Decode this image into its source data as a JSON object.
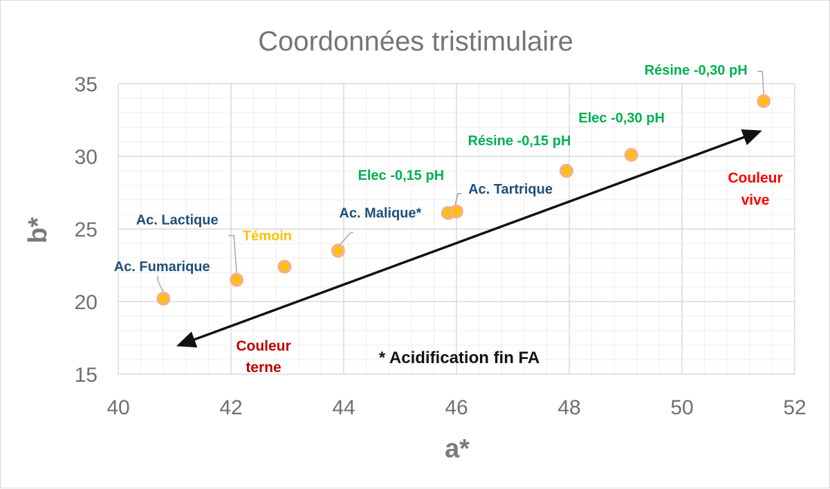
{
  "chart_data": {
    "type": "scatter",
    "title": "Coordonnées tristimulaire",
    "xlabel": "a*",
    "ylabel": "b*",
    "xlim": [
      40,
      52
    ],
    "ylim": [
      15,
      35
    ],
    "xticks": [
      "40",
      "42",
      "44",
      "46",
      "48",
      "50",
      "52"
    ],
    "yticks": [
      "15",
      "20",
      "25",
      "30",
      "35"
    ],
    "grid": true,
    "points": [
      {
        "label": "Ac. Fumarique",
        "x": 40.8,
        "y": 20.2,
        "color": "#1f4e79"
      },
      {
        "label": "Ac. Lactique",
        "x": 42.1,
        "y": 21.5,
        "color": "#1f4e79"
      },
      {
        "label": "Témoin",
        "x": 42.95,
        "y": 22.4,
        "color": "#ffc000"
      },
      {
        "label": "Ac. Malique*",
        "x": 43.9,
        "y": 23.5,
        "color": "#1f4e79"
      },
      {
        "label": "Elec -0,15 pH",
        "x": 45.85,
        "y": 26.1,
        "color": "#00b050"
      },
      {
        "label": "Ac. Tartrique",
        "x": 46.0,
        "y": 26.2,
        "color": "#1f4e79"
      },
      {
        "label": "Résine -0,15 pH",
        "x": 47.95,
        "y": 29.0,
        "color": "#00b050"
      },
      {
        "label": "Elec -0,30 pH",
        "x": 49.1,
        "y": 30.1,
        "color": "#00b050"
      },
      {
        "label": "Résine -0,30 pH",
        "x": 51.45,
        "y": 33.8,
        "color": "#00b050"
      }
    ],
    "annotations": {
      "note": "* Acidification fin FA",
      "dull_line1": "Couleur",
      "dull_line2": "terne",
      "vivid_line1": "Couleur",
      "vivid_line2": "vive",
      "dull_color": "#c00000",
      "vivid_color": "#ff0000"
    },
    "arrow": {
      "from": [
        41.15,
        17.1
      ],
      "to": [
        51.3,
        31.6
      ]
    },
    "marker_color": "#ffc000",
    "marker_edge": "#f4b183"
  }
}
